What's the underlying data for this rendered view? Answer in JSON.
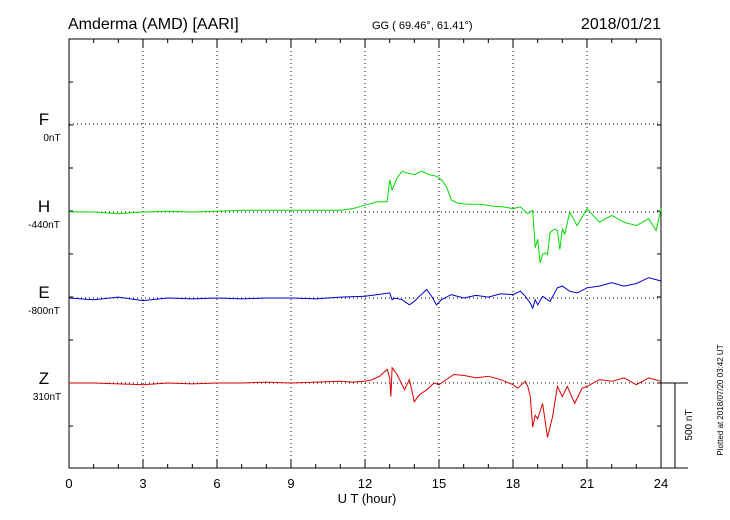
{
  "header": {
    "station": "Amderma (AMD)  [AARI]",
    "coords": "GG ( 69.46°,  61.41°)",
    "date": "2018/01/21"
  },
  "footer_note": "Plotted at 2018/07/20 03:42 UT",
  "scale_label": "500 nT",
  "chart_data": {
    "type": "line",
    "xlabel": "U T (hour)",
    "xlim": [
      0,
      24
    ],
    "x_ticks": [
      "0",
      "3",
      "6",
      "9",
      "12",
      "15",
      "18",
      "21",
      "24"
    ],
    "scale_bar_nT": 500,
    "series": [
      {
        "name": "F",
        "offset": "0nT",
        "color": "#f0a000",
        "x": [],
        "y": []
      },
      {
        "name": "H",
        "offset": "-440nT",
        "color": "#00dd00",
        "x": [
          0,
          1,
          2,
          3,
          4,
          5,
          6,
          7,
          8,
          9,
          10,
          11,
          11.5,
          12,
          12.5,
          12.9,
          13.0,
          13.1,
          13.3,
          13.5,
          13.7,
          14.0,
          14.3,
          14.6,
          14.9,
          15.1,
          15.3,
          15.5,
          15.8,
          16.2,
          16.7,
          17.2,
          17.6,
          18.0,
          18.3,
          18.6,
          18.8,
          18.9,
          19.0,
          19.1,
          19.2,
          19.3,
          19.4,
          19.5,
          19.6,
          19.7,
          19.8,
          19.9,
          20.0,
          20.1,
          20.3,
          20.6,
          21.0,
          21.5,
          22.0,
          22.5,
          23.0,
          23.5,
          23.8,
          24.0
        ],
        "y": [
          2,
          0,
          -10,
          0,
          5,
          0,
          5,
          10,
          10,
          10,
          10,
          10,
          20,
          40,
          60,
          60,
          190,
          130,
          200,
          240,
          230,
          220,
          240,
          220,
          210,
          190,
          150,
          70,
          50,
          45,
          45,
          35,
          30,
          20,
          30,
          -10,
          10,
          -210,
          -160,
          -300,
          -250,
          -240,
          -250,
          -120,
          -110,
          -100,
          -110,
          -220,
          -100,
          -130,
          0,
          -80,
          20,
          -60,
          -20,
          -60,
          -80,
          -40,
          -110,
          20
        ]
      },
      {
        "name": "E",
        "offset": "-800nT",
        "color": "#0000cc",
        "x": [
          0,
          1,
          2,
          3,
          4,
          5,
          6,
          7,
          8,
          9,
          10,
          11,
          12,
          12.5,
          13.0,
          13.1,
          13.2,
          13.5,
          13.8,
          14.0,
          14.2,
          14.5,
          14.7,
          14.9,
          15.1,
          15.5,
          16.0,
          16.5,
          17.0,
          17.5,
          18.0,
          18.3,
          18.5,
          18.7,
          18.8,
          18.9,
          19.0,
          19.2,
          19.5,
          19.8,
          20.0,
          20.3,
          20.6,
          21.0,
          21.5,
          22.0,
          22.5,
          23.0,
          23.5,
          24.0
        ],
        "y": [
          0,
          -10,
          5,
          -15,
          0,
          -5,
          0,
          -5,
          0,
          0,
          -5,
          5,
          10,
          20,
          30,
          -10,
          0,
          -10,
          -40,
          -20,
          10,
          50,
          10,
          -40,
          -10,
          20,
          0,
          15,
          5,
          25,
          20,
          40,
          10,
          -30,
          -60,
          -10,
          -40,
          10,
          -20,
          60,
          70,
          40,
          30,
          60,
          70,
          90,
          70,
          85,
          120,
          100
        ]
      },
      {
        "name": "Z",
        "offset": "310nT",
        "color": "#dd0000",
        "x": [
          0,
          1,
          2,
          3,
          4,
          5,
          6,
          7,
          8,
          9,
          10,
          11,
          11.5,
          12,
          12.3,
          12.6,
          12.9,
          13.0,
          13.05,
          13.1,
          13.3,
          13.6,
          13.8,
          14.0,
          14.2,
          14.5,
          14.8,
          15.0,
          15.3,
          15.6,
          16.0,
          16.5,
          17.0,
          17.5,
          18.0,
          18.2,
          18.5,
          18.6,
          18.7,
          18.8,
          18.9,
          19.0,
          19.2,
          19.4,
          19.6,
          19.8,
          20.0,
          20.2,
          20.5,
          20.8,
          21.0,
          21.5,
          22.0,
          22.5,
          23.0,
          23.5,
          24.0
        ],
        "y": [
          0,
          0,
          -5,
          -10,
          0,
          -5,
          0,
          0,
          5,
          0,
          5,
          10,
          5,
          10,
          20,
          40,
          80,
          30,
          -80,
          90,
          50,
          -40,
          20,
          -110,
          -70,
          -40,
          0,
          -10,
          20,
          50,
          45,
          30,
          40,
          20,
          -10,
          -30,
          10,
          -20,
          -80,
          -260,
          -190,
          -210,
          -120,
          -320,
          -200,
          -20,
          -80,
          -20,
          -120,
          -30,
          -20,
          20,
          10,
          30,
          -10,
          30,
          10
        ]
      }
    ]
  }
}
